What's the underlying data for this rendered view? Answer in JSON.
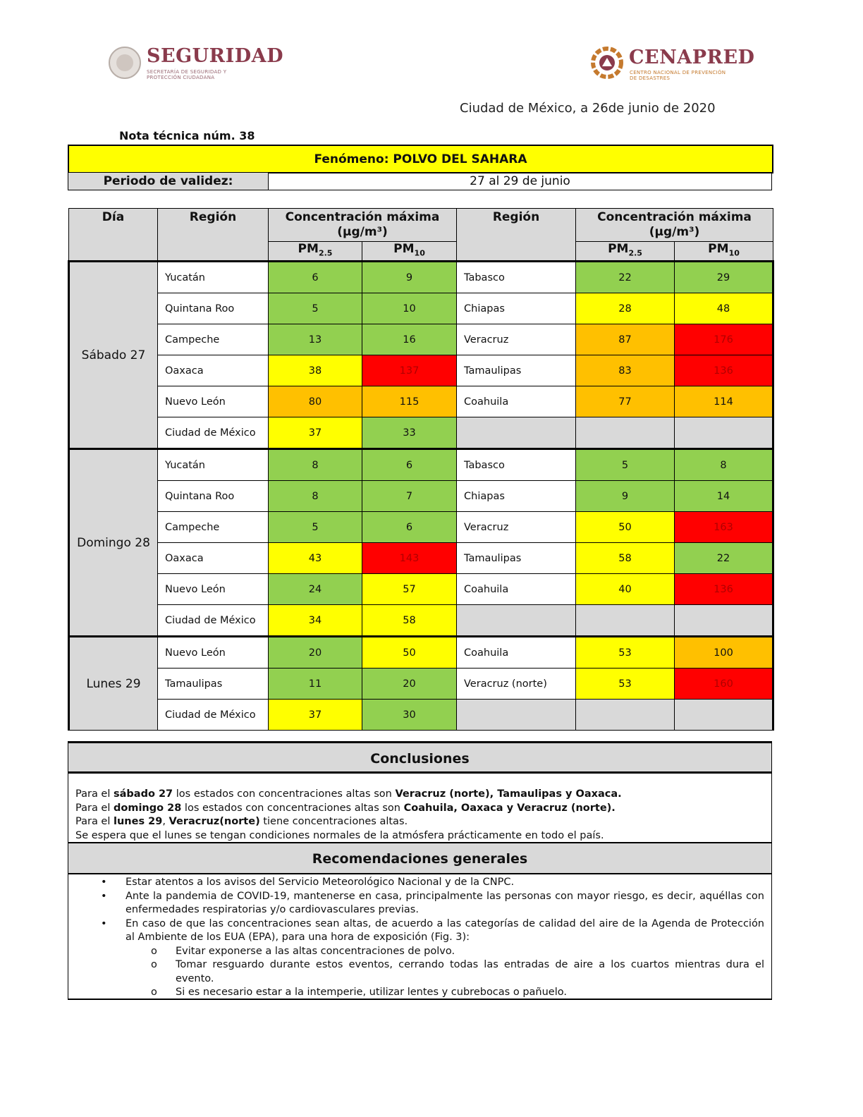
{
  "header": {
    "left_logo": {
      "name": "SEGURIDAD",
      "subtitle": "SECRETARÍA DE SEGURIDAD Y PROTECCIÓN CIUDADANA"
    },
    "right_logo": {
      "name": "CENAPRED",
      "subtitle": "CENTRO NACIONAL DE PREVENCIÓN DE DESASTRES"
    },
    "date": "Ciudad de México, a 26de junio de 2020",
    "note": "Nota técnica núm. 38"
  },
  "phenomenon": "Fenómeno: POLVO DEL SAHARA",
  "validity": {
    "label": "Periodo de validez:",
    "value": "27  al 29 de junio"
  },
  "table": {
    "headers": {
      "day": "Día",
      "region": "Región",
      "concentration": "Concentración máxima (µg/m³)",
      "pm25": {
        "base": "PM",
        "sub": "2.5"
      },
      "pm10": {
        "base": "PM",
        "sub": "10"
      }
    },
    "levels": {
      "green": "#92d050",
      "yellow": "#ffff00",
      "orange": "#ffc000",
      "red": "#ff0000"
    },
    "days": [
      {
        "day": "Sábado 27",
        "rows": [
          {
            "left": {
              "region": "Yucatán",
              "pm25": {
                "value": 6,
                "level": "green"
              },
              "pm10": {
                "value": 9,
                "level": "green"
              }
            },
            "right": {
              "region": "Tabasco",
              "pm25": {
                "value": 22,
                "level": "green"
              },
              "pm10": {
                "value": 29,
                "level": "green"
              }
            }
          },
          {
            "left": {
              "region": "Quintana Roo",
              "pm25": {
                "value": 5,
                "level": "green"
              },
              "pm10": {
                "value": 10,
                "level": "green"
              }
            },
            "right": {
              "region": "Chiapas",
              "pm25": {
                "value": 28,
                "level": "yellow"
              },
              "pm10": {
                "value": 48,
                "level": "yellow"
              }
            }
          },
          {
            "left": {
              "region": "Campeche",
              "pm25": {
                "value": 13,
                "level": "green"
              },
              "pm10": {
                "value": 16,
                "level": "green"
              }
            },
            "right": {
              "region": "Veracruz",
              "pm25": {
                "value": 87,
                "level": "orange"
              },
              "pm10": {
                "value": 176,
                "level": "red"
              }
            }
          },
          {
            "left": {
              "region": "Oaxaca",
              "pm25": {
                "value": 38,
                "level": "yellow"
              },
              "pm10": {
                "value": 137,
                "level": "red"
              }
            },
            "right": {
              "region": "Tamaulipas",
              "pm25": {
                "value": 83,
                "level": "orange"
              },
              "pm10": {
                "value": 136,
                "level": "red"
              }
            }
          },
          {
            "left": {
              "region": "Nuevo León",
              "pm25": {
                "value": 80,
                "level": "orange"
              },
              "pm10": {
                "value": 115,
                "level": "orange"
              }
            },
            "right": {
              "region": "Coahuila",
              "pm25": {
                "value": 77,
                "level": "orange"
              },
              "pm10": {
                "value": 114,
                "level": "orange"
              }
            }
          },
          {
            "left": {
              "region": "Ciudad de México",
              "pm25": {
                "value": 37,
                "level": "yellow"
              },
              "pm10": {
                "value": 33,
                "level": "green"
              }
            },
            "right": null
          }
        ]
      },
      {
        "day": "Domingo 28",
        "rows": [
          {
            "left": {
              "region": "Yucatán",
              "pm25": {
                "value": 8,
                "level": "green"
              },
              "pm10": {
                "value": 6,
                "level": "green"
              }
            },
            "right": {
              "region": "Tabasco",
              "pm25": {
                "value": 5,
                "level": "green"
              },
              "pm10": {
                "value": 8,
                "level": "green"
              }
            }
          },
          {
            "left": {
              "region": "Quintana Roo",
              "pm25": {
                "value": 8,
                "level": "green"
              },
              "pm10": {
                "value": 7,
                "level": "green"
              }
            },
            "right": {
              "region": "Chiapas",
              "pm25": {
                "value": 9,
                "level": "green"
              },
              "pm10": {
                "value": 14,
                "level": "green"
              }
            }
          },
          {
            "left": {
              "region": "Campeche",
              "pm25": {
                "value": 5,
                "level": "green"
              },
              "pm10": {
                "value": 6,
                "level": "green"
              }
            },
            "right": {
              "region": "Veracruz",
              "pm25": {
                "value": 50,
                "level": "yellow"
              },
              "pm10": {
                "value": 163,
                "level": "red"
              }
            }
          },
          {
            "left": {
              "region": "Oaxaca",
              "pm25": {
                "value": 43,
                "level": "yellow"
              },
              "pm10": {
                "value": 143,
                "level": "red"
              }
            },
            "right": {
              "region": "Tamaulipas",
              "pm25": {
                "value": 58,
                "level": "yellow"
              },
              "pm10": {
                "value": 22,
                "level": "green"
              }
            }
          },
          {
            "left": {
              "region": "Nuevo León",
              "pm25": {
                "value": 24,
                "level": "green"
              },
              "pm10": {
                "value": 57,
                "level": "yellow"
              }
            },
            "right": {
              "region": "Coahuila",
              "pm25": {
                "value": 40,
                "level": "yellow"
              },
              "pm10": {
                "value": 136,
                "level": "red"
              }
            }
          },
          {
            "left": {
              "region": "Ciudad de México",
              "pm25": {
                "value": 34,
                "level": "yellow"
              },
              "pm10": {
                "value": 58,
                "level": "yellow"
              }
            },
            "right": null
          }
        ]
      },
      {
        "day": "Lunes 29",
        "rows": [
          {
            "left": {
              "region": "Nuevo León",
              "pm25": {
                "value": 20,
                "level": "green"
              },
              "pm10": {
                "value": 50,
                "level": "yellow"
              }
            },
            "right": {
              "region": "Coahuila",
              "pm25": {
                "value": 53,
                "level": "yellow"
              },
              "pm10": {
                "value": 100,
                "level": "orange"
              }
            }
          },
          {
            "left": {
              "region": "Tamaulipas",
              "pm25": {
                "value": 11,
                "level": "green"
              },
              "pm10": {
                "value": 20,
                "level": "green"
              }
            },
            "right": {
              "region": "Veracruz (norte)",
              "pm25": {
                "value": 53,
                "level": "yellow"
              },
              "pm10": {
                "value": 160,
                "level": "red"
              }
            }
          },
          {
            "left": {
              "region": "Ciudad de México",
              "pm25": {
                "value": 37,
                "level": "yellow"
              },
              "pm10": {
                "value": 30,
                "level": "green"
              }
            },
            "right": null
          }
        ]
      }
    ]
  },
  "conclusions": {
    "title": "Conclusiones",
    "lines": [
      [
        {
          "text": "Para el ",
          "bold": false
        },
        {
          "text": "sábado 27",
          "bold": true
        },
        {
          "text": " los estados con concentraciones altas son ",
          "bold": false
        },
        {
          "text": "Veracruz (norte), Tamaulipas y Oaxaca.",
          "bold": true
        }
      ],
      [
        {
          "text": "Para el ",
          "bold": false
        },
        {
          "text": "domingo 28",
          "bold": true
        },
        {
          "text": " los estados con concentraciones altas son ",
          "bold": false
        },
        {
          "text": "Coahuila, Oaxaca y Veracruz (norte).",
          "bold": true
        }
      ],
      [
        {
          "text": "Para el ",
          "bold": false
        },
        {
          "text": "lunes 29",
          "bold": true
        },
        {
          "text": ", ",
          "bold": false
        },
        {
          "text": "Veracruz(norte)",
          "bold": true
        },
        {
          "text": " tiene concentraciones altas.",
          "bold": false
        }
      ],
      [
        {
          "text": "Se espera que el lunes se tengan condiciones normales de la atmósfera prácticamente en todo el país.",
          "bold": false
        }
      ]
    ]
  },
  "recommendations": {
    "title": "Recomendaciones generales",
    "items": [
      {
        "text": "Estar atentos a los avisos del Servicio Meteorológico Nacional y de la CNPC.",
        "subitems": []
      },
      {
        "text": "Ante la pandemia de COVID-19, mantenerse en casa, principalmente las personas con mayor riesgo, es decir, aquéllas con enfermedades respiratorias y/o cardiovasculares previas.",
        "subitems": []
      },
      {
        "text": "En caso de que las concentraciones sean altas, de acuerdo a las categorías de calidad del aire de la Agenda de Protección al Ambiente de los EUA (EPA), para una hora de exposición (Fig. 3):",
        "subitems": [
          "Evitar exponerse a las altas concentraciones de polvo.",
          "Tomar resguardo durante estos eventos, cerrando todas las entradas de aire a los cuartos mientras dura el evento.",
          "Si es necesario estar a la intemperie, utilizar lentes y cubrebocas o pañuelo."
        ]
      }
    ]
  }
}
